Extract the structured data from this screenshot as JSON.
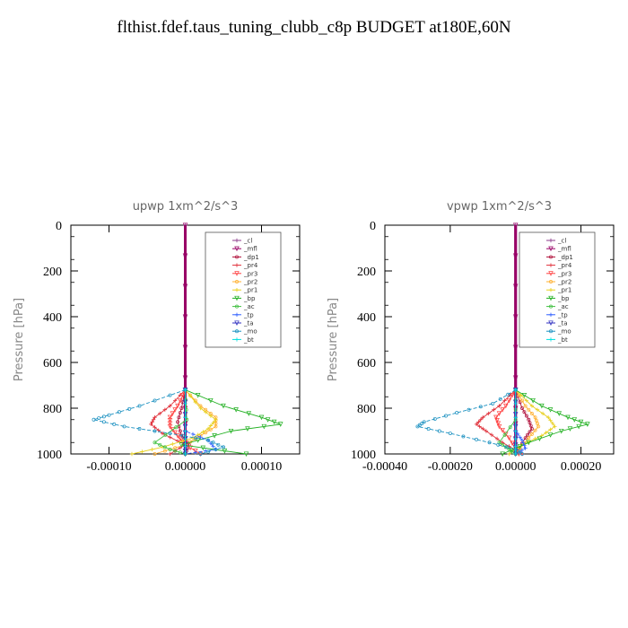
{
  "title": "flthist.fdef.taus_tuning_clubb_c8p  BUDGET at180E,60N",
  "colors": {
    "_cl": "#8b3a8b",
    "_mfl": "#990066",
    "_dp1": "#b0103a",
    "_pr4": "#e0303a",
    "_pr3": "#ff4040",
    "_pr2": "#ffb030",
    "_pr1": "#e8d020",
    "_bp": "#20b020",
    "_ac": "#40c040",
    "_tp": "#3060ff",
    "_ta": "#3030c0",
    "_mo": "#1a90c0",
    "_bt": "#00e0e0"
  },
  "legend_names": [
    "_cl",
    "_mfl",
    "_dp1",
    "_pr4",
    "_pr3",
    "_pr2",
    "_pr1",
    "_bp",
    "_ac",
    "_tp",
    "_ta",
    "_mo",
    "_bt"
  ],
  "chart_data": [
    {
      "type": "line",
      "title": "upwp   1xm^2/s^3",
      "ylabel": "Pressure  [hPa]",
      "xlim": [
        -0.00015,
        0.00015
      ],
      "ylim": [
        1000,
        0
      ],
      "xticks": [
        "-0.00010",
        "0.00000",
        "0.00010"
      ],
      "xtick_values": [
        -0.0001,
        0.0,
        0.0001
      ],
      "yticks": [
        0,
        200,
        400,
        600,
        800,
        1000
      ],
      "legend": "top-right",
      "series": [
        {
          "name": "_cl",
          "x": [
            0,
            0,
            0,
            0
          ],
          "y": [
            0,
            400,
            800,
            1000
          ]
        },
        {
          "name": "_mfl",
          "x": [
            0,
            0,
            0,
            0
          ],
          "y": [
            0,
            400,
            800,
            1000
          ]
        },
        {
          "name": "_dp1",
          "x": [
            0,
            -5e-06,
            -1e-05,
            -5e-06,
            5e-06,
            0
          ],
          "y": [
            720,
            800,
            860,
            920,
            960,
            1000
          ]
        },
        {
          "name": "_pr4",
          "x": [
            0,
            -2e-05,
            -4e-05,
            -4.5e-05,
            -3e-05,
            0,
            -2e-05
          ],
          "y": [
            720,
            790,
            840,
            870,
            910,
            960,
            1000
          ]
        },
        {
          "name": "_pr3",
          "x": [
            0,
            -1e-05,
            -2e-05,
            -2e-05,
            -1e-05,
            0,
            2e-05
          ],
          "y": [
            720,
            790,
            840,
            880,
            920,
            960,
            1000
          ]
        },
        {
          "name": "_pr2",
          "x": [
            0,
            2e-05,
            4e-05,
            4e-05,
            2e-05,
            0,
            -4e-05
          ],
          "y": [
            720,
            790,
            840,
            880,
            920,
            960,
            1000
          ]
        },
        {
          "name": "_pr1",
          "x": [
            0,
            2e-05,
            4e-05,
            3e-05,
            1e-05,
            -3e-05,
            -7e-05
          ],
          "y": [
            720,
            800,
            850,
            890,
            930,
            970,
            1000
          ]
        },
        {
          "name": "_bp",
          "x": [
            0,
            5e-05,
            0.0001,
            0.000125,
            6e-05,
            -5e-06,
            8e-05
          ],
          "y": [
            720,
            790,
            840,
            870,
            900,
            960,
            1000
          ]
        },
        {
          "name": "_ac",
          "x": [
            0,
            2e-06,
            -4e-05,
            -2e-05,
            0
          ],
          "y": [
            720,
            850,
            950,
            980,
            1000
          ]
        },
        {
          "name": "_tp",
          "x": [
            0,
            0,
            3e-05,
            4e-05,
            0
          ],
          "y": [
            720,
            900,
            940,
            980,
            1000
          ]
        },
        {
          "name": "_ta",
          "x": [
            0,
            0,
            0,
            0
          ],
          "y": [
            720,
            880,
            960,
            1000
          ]
        },
        {
          "name": "_mo",
          "x": [
            0,
            -6e-05,
            -0.0001,
            -0.00012,
            -8e-05,
            -2e-05,
            3e-05,
            5e-05,
            2e-05
          ],
          "y": [
            720,
            790,
            830,
            850,
            880,
            910,
            940,
            970,
            1000
          ]
        },
        {
          "name": "_bt",
          "x": [
            0,
            0,
            0
          ],
          "y": [
            720,
            900,
            1000
          ]
        }
      ]
    },
    {
      "type": "line",
      "title": "vpwp   1xm^2/s^3",
      "ylabel": "Pressure  [hPa]",
      "xlim": [
        -0.0004,
        0.0003
      ],
      "ylim": [
        1000,
        0
      ],
      "xticks": [
        "-0.00040",
        "-0.00020",
        "0.00000",
        "0.00020"
      ],
      "xtick_values": [
        -0.0004,
        -0.0002,
        0.0,
        0.0002
      ],
      "yticks": [
        0,
        200,
        400,
        600,
        800,
        1000
      ],
      "legend": "top-right",
      "series": [
        {
          "name": "_cl",
          "x": [
            0,
            0,
            0,
            0
          ],
          "y": [
            0,
            400,
            800,
            1000
          ]
        },
        {
          "name": "_mfl",
          "x": [
            0,
            0,
            0,
            0
          ],
          "y": [
            0,
            400,
            800,
            1000
          ]
        },
        {
          "name": "_dp1",
          "x": [
            0,
            2e-05,
            4e-05,
            5e-05,
            3e-05,
            0
          ],
          "y": [
            720,
            800,
            850,
            890,
            930,
            1000
          ]
        },
        {
          "name": "_pr4",
          "x": [
            0,
            -5e-05,
            -0.0001,
            -0.00012,
            -9e-05,
            -4e-05,
            2e-05
          ],
          "y": [
            720,
            790,
            840,
            870,
            900,
            950,
            1000
          ]
        },
        {
          "name": "_pr3",
          "x": [
            0,
            -3e-05,
            -6e-05,
            -5e-05,
            -2e-05,
            1e-05
          ],
          "y": [
            720,
            790,
            840,
            880,
            930,
            1000
          ]
        },
        {
          "name": "_pr2",
          "x": [
            0,
            3e-05,
            6e-05,
            7e-05,
            4e-05,
            0
          ],
          "y": [
            720,
            790,
            840,
            880,
            930,
            1000
          ]
        },
        {
          "name": "_pr1",
          "x": [
            0,
            5e-05,
            0.0001,
            0.00012,
            8e-05,
            2e-05,
            -2e-05
          ],
          "y": [
            720,
            790,
            840,
            880,
            920,
            960,
            1000
          ]
        },
        {
          "name": "_bp",
          "x": [
            0,
            8e-05,
            0.00016,
            0.00022,
            0.00014,
            4e-05,
            -4e-05
          ],
          "y": [
            720,
            790,
            840,
            870,
            900,
            950,
            1000
          ]
        },
        {
          "name": "_ac",
          "x": [
            0,
            0,
            -5e-05,
            -2e-05,
            0
          ],
          "y": [
            720,
            850,
            950,
            980,
            1000
          ]
        },
        {
          "name": "_tp",
          "x": [
            0,
            0,
            2e-05,
            3e-05,
            0
          ],
          "y": [
            720,
            900,
            940,
            975,
            1000
          ]
        },
        {
          "name": "_ta",
          "x": [
            0,
            0,
            0,
            0
          ],
          "y": [
            720,
            880,
            960,
            1000
          ]
        },
        {
          "name": "_mo",
          "x": [
            0,
            -7e-05,
            -0.00018,
            -0.00028,
            -0.0003,
            -0.0002,
            -8e-05,
            0,
            2e-05
          ],
          "y": [
            720,
            780,
            820,
            860,
            880,
            910,
            950,
            980,
            1000
          ]
        },
        {
          "name": "_bt",
          "x": [
            0,
            0,
            0
          ],
          "y": [
            720,
            900,
            1000
          ]
        }
      ]
    }
  ]
}
